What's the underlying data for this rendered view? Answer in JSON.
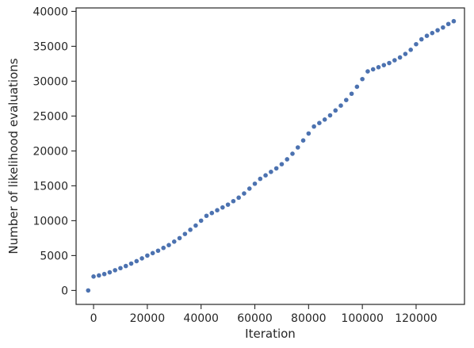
{
  "chart_data": {
    "type": "scatter",
    "title": "",
    "xlabel": "Iteration",
    "ylabel": "Number of likelihood evaluations",
    "xlim": [
      -6500,
      138000
    ],
    "ylim": [
      -2000,
      40500
    ],
    "x_ticks": [
      0,
      20000,
      40000,
      60000,
      80000,
      100000,
      120000
    ],
    "y_ticks": [
      0,
      5000,
      10000,
      15000,
      20000,
      25000,
      30000,
      35000,
      40000
    ],
    "x_tick_labels": [
      "0",
      "20000",
      "40000",
      "60000",
      "80000",
      "100000",
      "120000"
    ],
    "y_tick_labels": [
      "0",
      "5000",
      "10000",
      "15000",
      "20000",
      "25000",
      "30000",
      "35000",
      "40000"
    ],
    "grid": false,
    "marker_color": "#4c72b0",
    "series": [
      {
        "points": [
          [
            -2000,
            0
          ],
          [
            0,
            2000
          ],
          [
            2000,
            2150
          ],
          [
            4000,
            2350
          ],
          [
            6000,
            2600
          ],
          [
            8000,
            2900
          ],
          [
            10000,
            3200
          ],
          [
            12000,
            3500
          ],
          [
            14000,
            3850
          ],
          [
            16000,
            4200
          ],
          [
            18000,
            4600
          ],
          [
            20000,
            5000
          ],
          [
            22000,
            5350
          ],
          [
            24000,
            5700
          ],
          [
            26000,
            6100
          ],
          [
            28000,
            6500
          ],
          [
            30000,
            7000
          ],
          [
            32000,
            7500
          ],
          [
            34000,
            8100
          ],
          [
            36000,
            8700
          ],
          [
            38000,
            9300
          ],
          [
            40000,
            10000
          ],
          [
            42000,
            10700
          ],
          [
            44000,
            11100
          ],
          [
            46000,
            11500
          ],
          [
            48000,
            11900
          ],
          [
            50000,
            12300
          ],
          [
            52000,
            12800
          ],
          [
            54000,
            13300
          ],
          [
            56000,
            13900
          ],
          [
            58000,
            14600
          ],
          [
            60000,
            15300
          ],
          [
            62000,
            16000
          ],
          [
            64000,
            16500
          ],
          [
            66000,
            17000
          ],
          [
            68000,
            17500
          ],
          [
            70000,
            18100
          ],
          [
            72000,
            18800
          ],
          [
            74000,
            19600
          ],
          [
            76000,
            20500
          ],
          [
            78000,
            21500
          ],
          [
            80000,
            22500
          ],
          [
            82000,
            23500
          ],
          [
            84000,
            24000
          ],
          [
            86000,
            24500
          ],
          [
            88000,
            25100
          ],
          [
            90000,
            25800
          ],
          [
            92000,
            26500
          ],
          [
            94000,
            27300
          ],
          [
            96000,
            28200
          ],
          [
            98000,
            29200
          ],
          [
            100000,
            30300
          ],
          [
            102000,
            31400
          ],
          [
            104000,
            31700
          ],
          [
            106000,
            32000
          ],
          [
            108000,
            32300
          ],
          [
            110000,
            32600
          ],
          [
            112000,
            33000
          ],
          [
            114000,
            33400
          ],
          [
            116000,
            33900
          ],
          [
            118000,
            34500
          ],
          [
            120000,
            35300
          ],
          [
            122000,
            36000
          ],
          [
            124000,
            36500
          ],
          [
            126000,
            36900
          ],
          [
            128000,
            37300
          ],
          [
            130000,
            37700
          ],
          [
            132000,
            38200
          ],
          [
            134000,
            38600
          ]
        ]
      }
    ]
  }
}
